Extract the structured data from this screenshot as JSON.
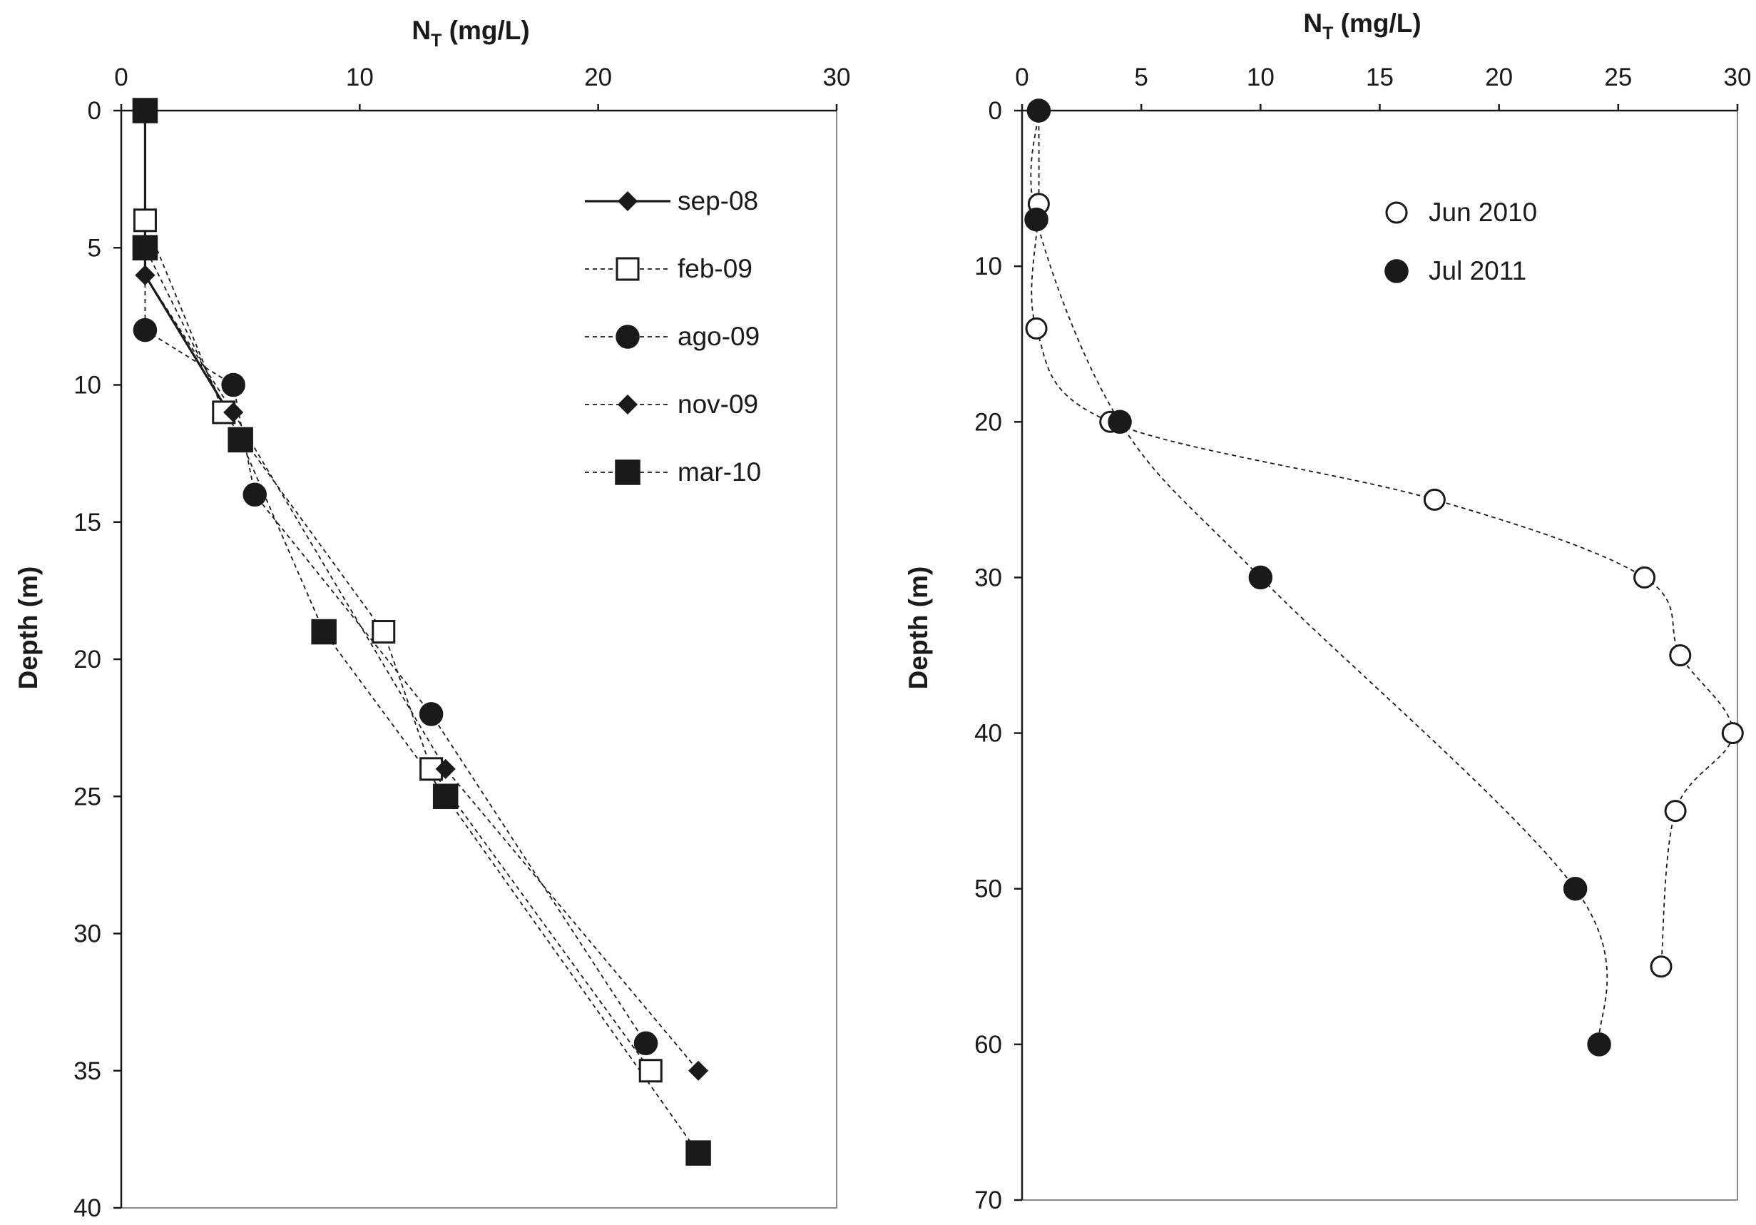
{
  "colors": {
    "ink": "#1a1a1a",
    "frame": "#8c8c8c",
    "paper": "#ffffff"
  },
  "chart_data": [
    {
      "type": "scatter",
      "title": "",
      "xlabel_main": "N",
      "xlabel_sub": "T",
      "xlabel_rest": " (mg/L)",
      "ylabel": "Depth (m)",
      "xlim": [
        0,
        30
      ],
      "ylim": [
        0,
        40
      ],
      "x_ticks": [
        "0",
        "10",
        "20",
        "30"
      ],
      "y_ticks": [
        "0",
        "5",
        "10",
        "15",
        "20",
        "25",
        "30",
        "35",
        "40"
      ],
      "y_inverted": true,
      "legend_placement": "top-right",
      "series": [
        {
          "name": "sep-08",
          "marker": "diamond-filled",
          "line": "solid",
          "x": [
            1.0,
            1.0,
            4.5
          ],
          "y": [
            0,
            6,
            11
          ]
        },
        {
          "name": "feb-09",
          "marker": "square-open",
          "line": "dashed",
          "x": [
            1.0,
            1.0,
            4.3,
            11.0,
            13.0,
            22.2
          ],
          "y": [
            0,
            4,
            11,
            19,
            24,
            35
          ]
        },
        {
          "name": "ago-09",
          "marker": "circle-filled",
          "line": "dashed",
          "x": [
            1.0,
            1.0,
            4.7,
            5.6,
            13.0,
            22.0
          ],
          "y": [
            0,
            8,
            10,
            14,
            22,
            34
          ]
        },
        {
          "name": "nov-09",
          "marker": "diamond-filled",
          "line": "dashed",
          "x": [
            1.0,
            1.0,
            4.7,
            13.6,
            24.2
          ],
          "y": [
            0,
            6,
            11,
            24,
            35
          ]
        },
        {
          "name": "mar-10",
          "marker": "square-filled",
          "line": "dashed",
          "x": [
            1.0,
            1.0,
            5.0,
            8.5,
            13.6,
            24.2
          ],
          "y": [
            0,
            5,
            12,
            19,
            25,
            38
          ]
        }
      ]
    },
    {
      "type": "scatter",
      "title": "",
      "xlabel_main": "N",
      "xlabel_sub": "T",
      "xlabel_rest": " (mg/L)",
      "ylabel": "Depth (m)",
      "xlim": [
        0,
        30
      ],
      "ylim": [
        0,
        70
      ],
      "x_ticks": [
        "0",
        "5",
        "10",
        "15",
        "20",
        "25",
        "30"
      ],
      "y_ticks": [
        "0",
        "10",
        "20",
        "30",
        "40",
        "50",
        "60",
        "70"
      ],
      "y_inverted": true,
      "legend_placement": "top-right",
      "series": [
        {
          "name": "Jun 2010",
          "marker": "circle-open",
          "line": "dashed",
          "x": [
            0.7,
            0.7,
            0.6,
            3.7,
            17.3,
            26.1,
            27.6,
            29.8,
            27.4,
            26.8
          ],
          "y": [
            0,
            6,
            14,
            20,
            25,
            30,
            35,
            40,
            45,
            55
          ]
        },
        {
          "name": "Jul 2011",
          "marker": "circle-filled",
          "line": "dashed",
          "x": [
            0.7,
            0.6,
            4.1,
            10.0,
            23.2,
            24.2
          ],
          "y": [
            0,
            7,
            20,
            30,
            50,
            60
          ]
        }
      ]
    }
  ]
}
